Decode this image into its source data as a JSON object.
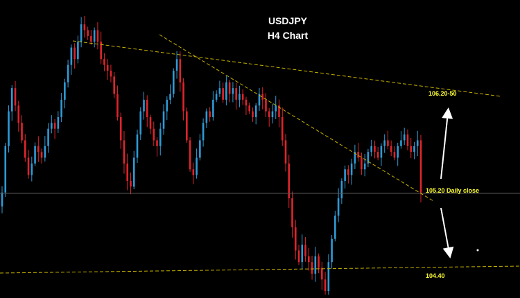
{
  "chart_data": {
    "type": "candlestick",
    "title": "USDJPY",
    "subtitle": "H4 Chart",
    "colors": {
      "background": "#000000",
      "bull": "#2e9bd6",
      "bear": "#e0242b",
      "trendline": "#c8b400",
      "level_text": "#ffff33",
      "close_line": "#5a5a5a",
      "arrow": "#ffffff"
    },
    "ylim": [
      104.3,
      106.75
    ],
    "annotations": {
      "resistance": "106.20-50",
      "daily_close": "105.20 Daily close",
      "support": "104.40"
    },
    "levels": {
      "daily_close": 105.2,
      "support": 104.4
    },
    "closes": [
      105.15,
      105.55,
      105.85,
      106.05,
      105.9,
      105.75,
      105.6,
      105.45,
      105.3,
      105.4,
      105.55,
      105.5,
      105.45,
      105.55,
      105.7,
      105.75,
      105.7,
      105.8,
      105.95,
      106.1,
      106.25,
      106.4,
      106.3,
      106.45,
      106.6,
      106.55,
      106.5,
      106.45,
      106.55,
      106.45,
      106.3,
      106.25,
      106.2,
      106.15,
      106.0,
      105.8,
      105.6,
      105.4,
      105.25,
      105.2,
      105.45,
      105.65,
      105.85,
      105.95,
      105.8,
      105.7,
      105.6,
      105.55,
      105.7,
      105.85,
      105.95,
      106.0,
      106.2,
      106.3,
      106.1,
      105.85,
      105.6,
      105.35,
      105.3,
      105.45,
      105.6,
      105.75,
      105.85,
      105.8,
      105.95,
      106.0,
      106.05,
      105.95,
      106.1,
      106.0,
      106.05,
      105.95,
      106.0,
      105.95,
      105.9,
      105.85,
      105.8,
      105.9,
      106.0,
      105.95,
      105.85,
      105.8,
      105.85,
      105.9,
      105.8,
      105.6,
      105.4,
      105.1,
      104.85,
      104.65,
      104.55,
      104.7,
      104.6,
      104.55,
      104.45,
      104.6,
      104.5,
      104.4,
      104.3,
      104.55,
      104.75,
      104.95,
      105.1,
      105.25,
      105.35,
      105.3,
      105.4,
      105.5,
      105.45,
      105.35,
      105.4,
      105.5,
      105.55,
      105.5,
      105.45,
      105.55,
      105.6,
      105.55,
      105.5,
      105.45,
      105.55,
      105.6,
      105.65,
      105.55,
      105.5,
      105.55,
      105.6,
      105.15
    ]
  }
}
